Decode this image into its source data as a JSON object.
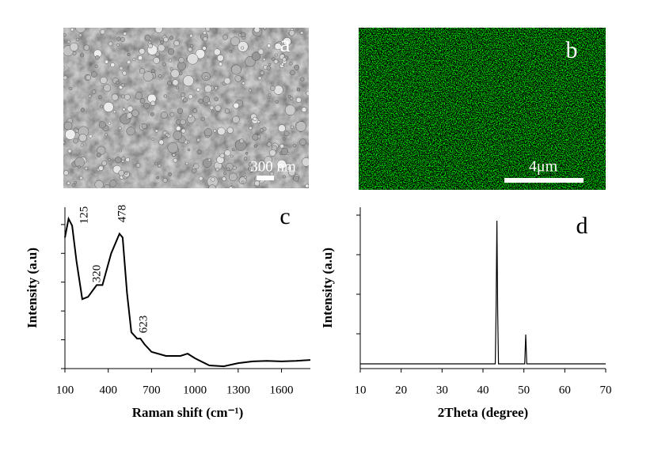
{
  "panels": [
    {
      "label": "a",
      "scale_bar": "300 nm"
    },
    {
      "label": "b",
      "scale_bar": "4μm"
    }
  ],
  "chart_data": [
    {
      "type": "line",
      "label": "c",
      "xlabel": "Raman shift (cm⁻¹)",
      "ylabel": "Intensity (a.u)",
      "annotations": [
        "125",
        "320",
        "478",
        "623"
      ],
      "x": [
        100,
        125,
        150,
        180,
        220,
        260,
        320,
        360,
        420,
        478,
        500,
        530,
        560,
        600,
        623,
        650,
        700,
        800,
        900,
        950,
        1000,
        1100,
        1200,
        1300,
        1400,
        1500,
        1600,
        1700,
        1800
      ],
      "values": [
        4.55,
        5.2,
        4.96,
        3.73,
        2.41,
        2.49,
        2.9,
        2.9,
        4.0,
        4.68,
        4.55,
        2.63,
        1.26,
        1.04,
        1.04,
        0.85,
        0.58,
        0.44,
        0.44,
        0.52,
        0.36,
        0.11,
        0.08,
        0.19,
        0.25,
        0.27,
        0.25,
        0.27,
        0.3
      ],
      "color": "#000000",
      "xlim": [
        100,
        1800
      ],
      "xticks": [
        100,
        400,
        700,
        1000,
        1300,
        1600
      ],
      "ylim": [
        0,
        5.6
      ],
      "yticks": [
        0,
        1,
        2,
        3,
        4,
        5
      ]
    },
    {
      "type": "line",
      "label": "d",
      "xlabel": "2Theta (degree)",
      "ylabel": "Intensity (a.u)",
      "x": [
        10,
        43.0,
        43.2,
        43.4,
        43.6,
        43.8,
        50.2,
        50.45,
        50.7,
        70
      ],
      "values": [
        0.24,
        0.24,
        1.5,
        3.86,
        1.5,
        0.24,
        0.24,
        0.98,
        0.24,
        0.24
      ],
      "color": "#000000",
      "xlim": [
        10,
        70
      ],
      "xticks": [
        10,
        20,
        30,
        40,
        50,
        60,
        70
      ],
      "ylim": [
        0.12,
        4.2
      ],
      "yticks": [
        1,
        2,
        3,
        4
      ]
    }
  ]
}
